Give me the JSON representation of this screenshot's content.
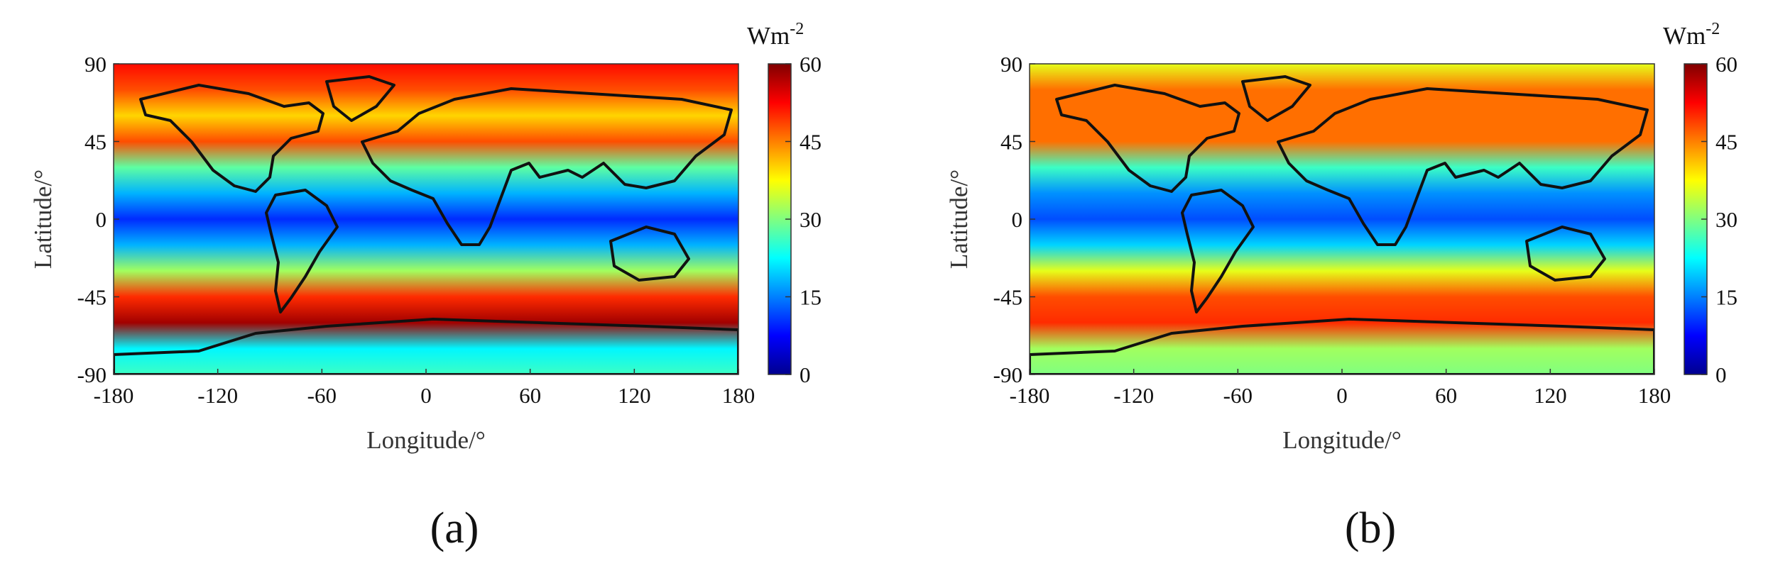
{
  "colors": {
    "colormap": [
      "#00008f",
      "#0000ff",
      "#0080ff",
      "#00ffff",
      "#80ff80",
      "#ffff00",
      "#ff8000",
      "#ff0000",
      "#800000"
    ]
  },
  "colorbar_ticks": [
    "0",
    "15",
    "30",
    "45",
    "60"
  ],
  "unit": "Wm",
  "unit_exp": "-2",
  "xlabel": "Longitude/°",
  "ylabel": "Latitude/°",
  "xticks": [
    "-180",
    "-120",
    "-60",
    "0",
    "60",
    "120",
    "180"
  ],
  "yticks": [
    "90",
    "45",
    "0",
    "-45",
    "-90"
  ],
  "chart_data": [
    {
      "type": "heatmap",
      "caption": "(a)",
      "xlabel": "Longitude/°",
      "ylabel": "Latitude/°",
      "xlim": [
        -180,
        180
      ],
      "ylim": [
        -90,
        90
      ],
      "zlim": [
        0,
        60
      ],
      "colorbar_label": "Wm-2",
      "zonal_profile": {
        "lat": [
          90,
          75,
          60,
          45,
          30,
          15,
          0,
          -15,
          -30,
          -45,
          -60,
          -75,
          -90
        ],
        "value": [
          52,
          48,
          40,
          48,
          28,
          18,
          10,
          18,
          32,
          50,
          58,
          22,
          26
        ]
      }
    },
    {
      "type": "heatmap",
      "caption": "(b)",
      "xlabel": "Longitude/°",
      "ylabel": "Latitude/°",
      "xlim": [
        -180,
        180
      ],
      "ylim": [
        -90,
        90
      ],
      "zlim": [
        0,
        60
      ],
      "colorbar_label": "Wm-2",
      "zonal_profile": {
        "lat": [
          90,
          75,
          60,
          45,
          30,
          15,
          0,
          -15,
          -30,
          -45,
          -60,
          -75,
          -90
        ],
        "value": [
          36,
          46,
          46,
          46,
          26,
          16,
          12,
          20,
          36,
          48,
          50,
          32,
          30
        ]
      }
    }
  ]
}
